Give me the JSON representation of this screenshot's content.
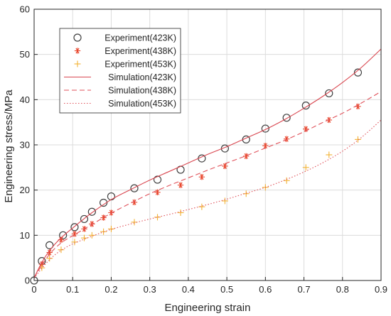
{
  "chart_data": {
    "type": "line",
    "title": "",
    "xlabel": "Engineering strain",
    "ylabel": "Engineering stress/MPa",
    "xlim": [
      0,
      0.9
    ],
    "ylim": [
      0,
      60
    ],
    "xticks": [
      "0",
      "0.1",
      "0.2",
      "0.3",
      "0.4",
      "0.5",
      "0.6",
      "0.7",
      "0.8",
      "0.9"
    ],
    "yticks": [
      "0",
      "10",
      "20",
      "30",
      "40",
      "50",
      "60"
    ],
    "grid": true,
    "legend_position": "top-left",
    "series": [
      {
        "name": "Experiment(423K)",
        "kind": "marker",
        "marker": "circle",
        "color": "#404040",
        "x": [
          0,
          0.02,
          0.04,
          0.075,
          0.105,
          0.13,
          0.15,
          0.18,
          0.2,
          0.26,
          0.32,
          0.38,
          0.435,
          0.495,
          0.55,
          0.6,
          0.655,
          0.705,
          0.765,
          0.84
        ],
        "y": [
          0,
          4.3,
          7.8,
          10.0,
          11.8,
          13.6,
          15.2,
          17.2,
          18.6,
          20.4,
          22.3,
          24.5,
          27.0,
          29.2,
          31.2,
          33.6,
          36.0,
          38.7,
          41.4,
          46.0
        ]
      },
      {
        "name": "Experiment(438K)",
        "kind": "marker",
        "marker": "asterisk",
        "color": "#e8452c",
        "x": [
          0.02,
          0.04,
          0.07,
          0.105,
          0.13,
          0.15,
          0.18,
          0.2,
          0.26,
          0.32,
          0.38,
          0.435,
          0.495,
          0.55,
          0.6,
          0.655,
          0.705,
          0.765,
          0.84
        ],
        "y": [
          3.6,
          6.2,
          9.0,
          10.3,
          11.4,
          12.5,
          13.9,
          15.0,
          17.3,
          19.5,
          21.1,
          22.9,
          25.3,
          27.5,
          29.8,
          31.3,
          33.5,
          35.5,
          38.5
        ]
      },
      {
        "name": "Experiment(453K)",
        "kind": "marker",
        "marker": "plus",
        "color": "#f2b233",
        "x": [
          0.02,
          0.04,
          0.07,
          0.105,
          0.13,
          0.15,
          0.18,
          0.2,
          0.26,
          0.32,
          0.38,
          0.435,
          0.495,
          0.55,
          0.6,
          0.655,
          0.705,
          0.765,
          0.84
        ],
        "y": [
          2.8,
          4.9,
          6.8,
          8.5,
          9.4,
          10.0,
          10.8,
          11.4,
          12.9,
          14.0,
          15.0,
          16.3,
          17.6,
          19.2,
          20.6,
          22.1,
          25.0,
          27.8,
          31.2
        ]
      },
      {
        "name": "Simulation(423K)",
        "kind": "line",
        "dash": "solid",
        "color": "#d9464f",
        "x": [
          0,
          0.02,
          0.04,
          0.06,
          0.08,
          0.1,
          0.12,
          0.15,
          0.2,
          0.25,
          0.3,
          0.35,
          0.4,
          0.45,
          0.5,
          0.55,
          0.6,
          0.65,
          0.7,
          0.75,
          0.8,
          0.85,
          0.9
        ],
        "y": [
          0.6,
          4.0,
          6.6,
          8.6,
          10.2,
          11.6,
          13.0,
          15.0,
          17.9,
          20.1,
          22.2,
          24.1,
          26.0,
          27.9,
          29.6,
          31.5,
          33.4,
          35.6,
          38.1,
          40.8,
          43.8,
          47.2,
          51.2
        ]
      },
      {
        "name": "Simulation(438K)",
        "kind": "line",
        "dash": "dashed",
        "color": "#e0515a",
        "x": [
          0,
          0.02,
          0.04,
          0.06,
          0.08,
          0.1,
          0.12,
          0.15,
          0.2,
          0.25,
          0.3,
          0.35,
          0.4,
          0.45,
          0.5,
          0.55,
          0.6,
          0.65,
          0.7,
          0.75,
          0.8,
          0.85,
          0.9
        ],
        "y": [
          0.6,
          3.4,
          5.8,
          7.6,
          8.9,
          9.9,
          10.9,
          12.4,
          14.9,
          17.1,
          19.2,
          21.0,
          22.7,
          24.4,
          26.0,
          27.6,
          29.3,
          31.0,
          32.9,
          35.0,
          37.0,
          39.3,
          41.8
        ]
      },
      {
        "name": "Simulation(453K)",
        "kind": "line",
        "dash": "dotted",
        "color": "#e0515a",
        "x": [
          0,
          0.02,
          0.04,
          0.06,
          0.08,
          0.1,
          0.12,
          0.15,
          0.2,
          0.25,
          0.3,
          0.35,
          0.4,
          0.45,
          0.5,
          0.55,
          0.6,
          0.65,
          0.7,
          0.75,
          0.8,
          0.85,
          0.9
        ],
        "y": [
          0.5,
          2.7,
          4.6,
          6.1,
          7.2,
          8.1,
          8.8,
          9.8,
          11.3,
          12.5,
          13.6,
          14.6,
          15.7,
          16.8,
          18.0,
          19.3,
          20.6,
          22.2,
          24.0,
          26.1,
          28.6,
          31.7,
          35.5
        ]
      }
    ]
  }
}
